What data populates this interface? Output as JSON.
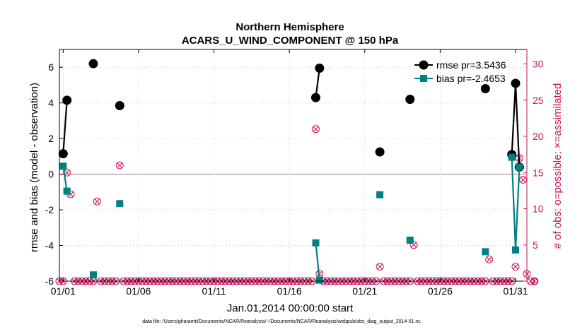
{
  "chart_data": {
    "type": "line",
    "title": "Northern Hemisphere",
    "subtitle": "ACARS_U_WIND_COMPONENT @ 150 hPa",
    "xlabel": "Jan.01,2014 00:00:00 start",
    "ylabel": "rmse and bias (model - observation)",
    "y2label": "# of obs: o=possible; ×=assimilated",
    "footnote": "data file: /Users/gharamti/Documents/NCAR/Reanalysis/~/Documents/NCAR/Reanalysis/webpub/obs_diag_output_2014-01.nc",
    "xlim": [
      0.75,
      31.75
    ],
    "ylim": [
      -6,
      7
    ],
    "y2lim": [
      0,
      32
    ],
    "x_ticks": [
      1,
      6,
      11,
      16,
      21,
      26,
      31
    ],
    "x_tick_labels": [
      "01/01",
      "01/06",
      "01/11",
      "01/16",
      "01/21",
      "01/26",
      "01/31"
    ],
    "y_ticks": [
      -6,
      -4,
      -2,
      0,
      2,
      4,
      6
    ],
    "y2_ticks": [
      0,
      5,
      10,
      15,
      20,
      25,
      30
    ],
    "legend_position": "top-right",
    "colors": {
      "rmse": "#000000",
      "bias": "#008080",
      "obs": "#c8145a",
      "zero_line": "#c0a8b0"
    },
    "series": [
      {
        "name": "rmse pr=3.5436",
        "marker": "circle",
        "points": [
          [
            1.0,
            1.15
          ],
          [
            1.25,
            4.15
          ],
          [
            3.0,
            6.2
          ],
          [
            4.75,
            3.85
          ],
          [
            17.75,
            4.3
          ],
          [
            18.0,
            5.95
          ],
          [
            22.0,
            1.25
          ],
          [
            24.0,
            4.2
          ],
          [
            29.0,
            4.8
          ],
          [
            30.75,
            1.1
          ],
          [
            31.0,
            5.1
          ],
          [
            31.25,
            0.4
          ]
        ],
        "segments": [
          [
            0,
            1
          ],
          [
            4,
            5
          ],
          [
            9,
            10,
            11
          ]
        ]
      },
      {
        "name": "bias pr=-2.4653",
        "marker": "square",
        "points": [
          [
            1.0,
            0.45
          ],
          [
            1.25,
            -0.95
          ],
          [
            3.0,
            -5.65
          ],
          [
            4.75,
            -1.65
          ],
          [
            17.75,
            -3.85
          ],
          [
            18.0,
            -5.95
          ],
          [
            22.0,
            -1.15
          ],
          [
            24.0,
            -3.7
          ],
          [
            29.0,
            -4.35
          ],
          [
            30.75,
            0.95
          ],
          [
            31.0,
            -4.25
          ],
          [
            31.25,
            0.4
          ]
        ],
        "segments": [
          [
            0,
            1
          ],
          [
            4,
            5
          ],
          [
            9,
            10,
            11
          ]
        ]
      }
    ],
    "obs_start": 0.75,
    "obs_step": 0.25,
    "obs_counts": [
      0,
      0,
      15,
      12,
      0,
      0,
      0,
      0,
      0,
      0,
      11,
      0,
      0,
      0,
      0,
      0,
      16,
      0,
      0,
      0,
      0,
      0,
      0,
      0,
      0,
      0,
      0,
      0,
      0,
      0,
      0,
      0,
      0,
      0,
      0,
      0,
      0,
      0,
      0,
      0,
      0,
      0,
      0,
      0,
      0,
      0,
      0,
      0,
      0,
      0,
      0,
      0,
      0,
      0,
      0,
      0,
      0,
      0,
      0,
      0,
      0,
      0,
      0,
      0,
      0,
      0,
      0,
      0,
      21,
      1,
      0,
      0,
      0,
      0,
      0,
      0,
      0,
      0,
      0,
      0,
      0,
      0,
      0,
      0,
      0,
      2,
      0,
      0,
      0,
      0,
      0,
      0,
      0,
      0,
      5,
      0,
      0,
      0,
      0,
      0,
      0,
      0,
      0,
      0,
      0,
      0,
      0,
      0,
      0,
      0,
      0,
      0,
      0,
      0,
      3,
      0,
      0,
      0,
      0,
      0,
      0,
      2,
      17,
      14,
      1,
      0,
      0
    ],
    "zero_line": 0
  }
}
